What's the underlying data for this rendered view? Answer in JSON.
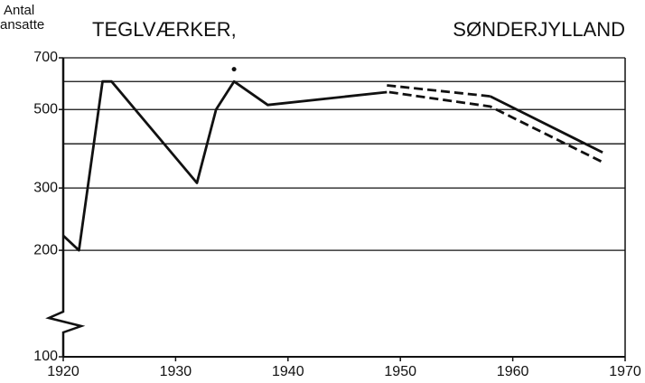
{
  "chart_data": {
    "type": "line",
    "title": "TEGLVÆRKER,",
    "subtitle": "SØNDERJYLLAND",
    "ylabel": [
      "Antal",
      "ansatte"
    ],
    "log_y": true,
    "grid": true,
    "color": "#111111",
    "xlim": [
      1920,
      1970
    ],
    "xticks": [
      1920,
      1930,
      1940,
      1950,
      1960,
      1970
    ],
    "ylim": [
      100,
      700
    ],
    "yticks": [
      100,
      200,
      300,
      500,
      700
    ],
    "yminorticks": [
      400,
      600
    ],
    "series": [
      {
        "style": "solid",
        "x": [
          1920,
          1921.4,
          1923.5,
          1924.3,
          1931.9,
          1933.6,
          1935.2,
          1938.2,
          1948.8,
          1953,
          1958,
          1968
        ],
        "values": [
          220,
          200,
          600,
          600,
          310,
          500,
          600,
          515,
          560,
          null,
          545,
          378
        ]
      },
      {
        "style": "dashed",
        "x": [
          1948.8,
          1958
        ],
        "values": [
          585,
          545
        ]
      },
      {
        "style": "dashed",
        "x": [
          1949,
          1958,
          1968
        ],
        "values": [
          560,
          510,
          355
        ]
      },
      {
        "style": "point",
        "x": [
          1935.2
        ],
        "values": [
          650
        ]
      }
    ]
  }
}
